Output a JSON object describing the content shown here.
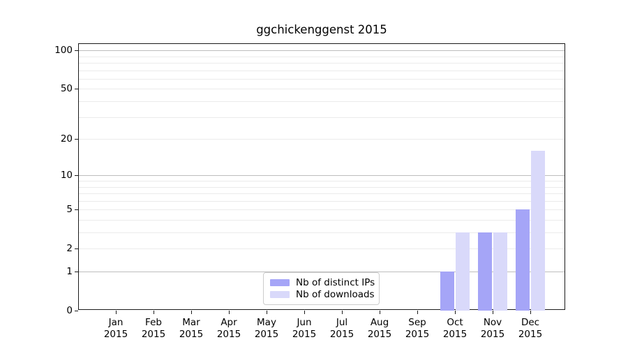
{
  "chart_data": {
    "type": "bar",
    "title": "ggchickenggenst 2015",
    "categories": [
      "Jan",
      "Feb",
      "Mar",
      "Apr",
      "May",
      "Jun",
      "Jul",
      "Aug",
      "Sep",
      "Oct",
      "Nov",
      "Dec"
    ],
    "category_year": "2015",
    "series": [
      {
        "name": "Nb of distinct IPs",
        "color": "#a5a5f7",
        "values": [
          0,
          0,
          0,
          0,
          0,
          0,
          0,
          0,
          0,
          1,
          3,
          5
        ]
      },
      {
        "name": "Nb of downloads",
        "color": "#d9d9fa",
        "values": [
          0,
          0,
          0,
          0,
          0,
          0,
          0,
          0,
          0,
          3,
          3,
          16
        ]
      }
    ],
    "yscale": "log10(1+x)",
    "ylim": [
      0,
      112.3
    ],
    "yticks": [
      0,
      1,
      2,
      5,
      10,
      20,
      50,
      100
    ],
    "grid": {
      "major_values": [
        1,
        10,
        100
      ],
      "minor_values": [
        2,
        3,
        4,
        5,
        6,
        7,
        8,
        9,
        20,
        30,
        40,
        50,
        60,
        70,
        80,
        90
      ],
      "major_color": "#bdbdbd",
      "minor_color": "#ebebeb"
    },
    "legend_position": "lower center",
    "axis_color": "#1a1a1a",
    "text_color": "#000000"
  }
}
